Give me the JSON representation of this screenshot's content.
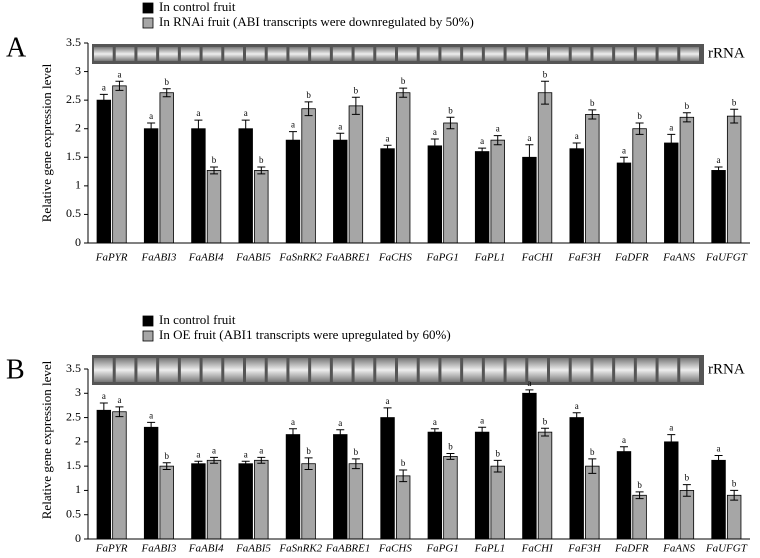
{
  "chart_data": [
    {
      "type": "bar",
      "panel": "A",
      "gel_label": "rRNA",
      "y_label": "Relative gene expression level",
      "categories": [
        "FaPYR",
        "FaABI3",
        "FaABI4",
        "FaABI5",
        "FaSnRK2",
        "FaABRE1",
        "FaCHS",
        "FaPG1",
        "FaPL1",
        "FaCHI",
        "FaF3H",
        "FaDFR",
        "FaANS",
        "FaUFGT"
      ],
      "series": [
        {
          "name": "In control fruit",
          "color": "#000000",
          "values": [
            2.5,
            2.0,
            2.0,
            2.0,
            1.8,
            1.8,
            1.65,
            1.7,
            1.6,
            1.5,
            1.65,
            1.4,
            1.75,
            1.27
          ],
          "errors": [
            0.1,
            0.1,
            0.15,
            0.15,
            0.15,
            0.12,
            0.06,
            0.12,
            0.06,
            0.22,
            0.1,
            0.1,
            0.15,
            0.06
          ],
          "significance": [
            "a",
            "a",
            "a",
            "a",
            "a",
            "a",
            "a",
            "a",
            "a",
            "a",
            "a",
            "a",
            "a",
            "a"
          ]
        },
        {
          "name": "In RNAi fruit (ABI transcripts were downregulated by 50%)",
          "color": "#a6a6a6",
          "values": [
            2.75,
            2.63,
            1.27,
            1.27,
            2.35,
            2.4,
            2.63,
            2.1,
            1.8,
            2.63,
            2.25,
            2.0,
            2.2,
            2.22
          ],
          "errors": [
            0.08,
            0.07,
            0.06,
            0.06,
            0.12,
            0.15,
            0.08,
            0.1,
            0.08,
            0.2,
            0.08,
            0.1,
            0.08,
            0.12
          ],
          "significance": [
            "a",
            "b",
            "b",
            "b",
            "b",
            "b",
            "b",
            "b",
            "a",
            "b",
            "b",
            "b",
            "b",
            "b"
          ]
        }
      ],
      "ylim": [
        0,
        3.5
      ],
      "yticks": [
        0,
        0.5,
        1,
        1.5,
        2,
        2.5,
        3,
        3.5
      ]
    },
    {
      "type": "bar",
      "panel": "B",
      "gel_label": "rRNA",
      "y_label": "Relative gene expression level",
      "categories": [
        "FaPYR",
        "FaABI3",
        "FaABI4",
        "FaABI5",
        "FaSnRK2",
        "FaABRE1",
        "FaCHS",
        "FaPG1",
        "FaPL1",
        "FaCHI",
        "FaF3H",
        "FaDFR",
        "FaANS",
        "FaUFGT"
      ],
      "series": [
        {
          "name": "In control fruit",
          "color": "#000000",
          "values": [
            2.65,
            2.3,
            1.55,
            1.55,
            2.15,
            2.15,
            2.5,
            2.2,
            2.2,
            3.0,
            2.5,
            1.8,
            2.0,
            1.62
          ],
          "errors": [
            0.15,
            0.1,
            0.05,
            0.05,
            0.12,
            0.1,
            0.2,
            0.07,
            0.1,
            0.07,
            0.1,
            0.1,
            0.15,
            0.1
          ],
          "significance": [
            "a",
            "a",
            "a",
            "a",
            "a",
            "a",
            "a",
            "a",
            "a",
            "a",
            "a",
            "a",
            "a",
            "a"
          ]
        },
        {
          "name": "In OE fruit (ABI1 transcripts were upregulated by 60%)",
          "color": "#a6a6a6",
          "values": [
            2.62,
            1.5,
            1.62,
            1.62,
            1.55,
            1.55,
            1.3,
            1.7,
            1.5,
            2.2,
            1.5,
            0.9,
            1.0,
            0.9
          ],
          "errors": [
            0.1,
            0.07,
            0.06,
            0.06,
            0.12,
            0.1,
            0.12,
            0.06,
            0.12,
            0.08,
            0.15,
            0.07,
            0.12,
            0.1
          ],
          "significance": [
            "a",
            "b",
            "a",
            "a",
            "b",
            "b",
            "b",
            "b",
            "b",
            "b",
            "b",
            "b",
            "b",
            "b"
          ]
        }
      ],
      "ylim": [
        0,
        3.5
      ],
      "yticks": [
        0,
        0.5,
        1,
        1.5,
        2,
        2.5,
        3,
        3.5
      ]
    }
  ]
}
